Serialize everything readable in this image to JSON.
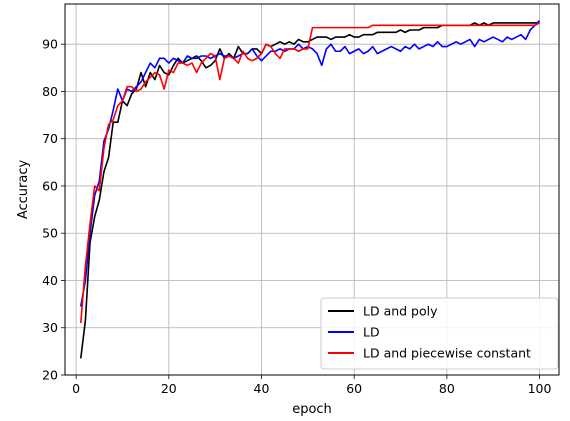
{
  "chart_data": {
    "type": "line",
    "title": "",
    "xlabel": "epoch",
    "ylabel": "Accuracy",
    "xlim": [
      -2.4,
      104.2
    ],
    "ylim": [
      20,
      98.5
    ],
    "xticks": [
      0,
      20,
      40,
      60,
      80,
      100
    ],
    "yticks": [
      20,
      30,
      40,
      50,
      60,
      70,
      80,
      90
    ],
    "grid": true,
    "legend_position": "lower-right",
    "series": [
      {
        "name": "LD and poly",
        "color": "#000000",
        "x": [
          1,
          2,
          3,
          4,
          5,
          6,
          7,
          8,
          9,
          10,
          11,
          12,
          13,
          14,
          15,
          16,
          17,
          18,
          19,
          20,
          21,
          22,
          23,
          24,
          25,
          26,
          27,
          28,
          29,
          30,
          31,
          32,
          33,
          34,
          35,
          36,
          37,
          38,
          39,
          40,
          41,
          42,
          43,
          44,
          45,
          46,
          47,
          48,
          49,
          50,
          51,
          52,
          53,
          54,
          55,
          56,
          57,
          58,
          59,
          60,
          61,
          62,
          63,
          64,
          65,
          66,
          67,
          68,
          69,
          70,
          71,
          72,
          73,
          74,
          75,
          76,
          77,
          78,
          79,
          80,
          81,
          82,
          83,
          84,
          85,
          86,
          87,
          88,
          89,
          90,
          91,
          92,
          93,
          94,
          95,
          96,
          97,
          98,
          99,
          100
        ],
        "values": [
          23.5,
          31.5,
          48,
          53.5,
          57,
          63,
          66,
          73.5,
          73.5,
          78,
          77,
          79.5,
          80.5,
          84,
          81,
          84,
          82.5,
          85.5,
          84,
          83.5,
          85.5,
          87,
          86,
          86.5,
          87,
          87.5,
          86.5,
          85,
          85.5,
          86.5,
          89,
          87,
          88,
          87,
          89.5,
          88,
          88,
          89,
          89,
          88,
          90,
          89.5,
          90,
          90.5,
          90,
          90.5,
          90,
          91,
          90.5,
          90.5,
          91,
          91.5,
          91.5,
          91.5,
          91,
          91.5,
          91.5,
          91.5,
          92,
          91.5,
          91.5,
          92,
          92,
          92,
          92.5,
          92.5,
          92.5,
          92.5,
          92.5,
          93,
          92.5,
          93,
          93,
          93,
          93.5,
          93.5,
          93.5,
          93.5,
          94,
          94,
          94,
          94,
          94,
          94,
          94,
          94.5,
          94,
          94.5,
          94,
          94.5,
          94.5,
          94.5,
          94.5,
          94.5,
          94.5,
          94.5,
          94.5,
          94.5,
          94.5,
          94.5
        ]
      },
      {
        "name": "LD",
        "color": "#0000ff",
        "x": [
          1,
          2,
          3,
          4,
          5,
          6,
          7,
          8,
          9,
          10,
          11,
          12,
          13,
          14,
          15,
          16,
          17,
          18,
          19,
          20,
          21,
          22,
          23,
          24,
          25,
          26,
          27,
          28,
          29,
          30,
          31,
          32,
          33,
          34,
          35,
          36,
          37,
          38,
          39,
          40,
          41,
          42,
          43,
          44,
          45,
          46,
          47,
          48,
          49,
          50,
          51,
          52,
          53,
          54,
          55,
          56,
          57,
          58,
          59,
          60,
          61,
          62,
          63,
          64,
          65,
          66,
          67,
          68,
          69,
          70,
          71,
          72,
          73,
          74,
          75,
          76,
          77,
          78,
          79,
          80,
          81,
          82,
          83,
          84,
          85,
          86,
          87,
          88,
          89,
          90,
          91,
          92,
          93,
          94,
          95,
          96,
          97,
          98,
          99,
          100
        ],
        "values": [
          34.5,
          40,
          50,
          58,
          61,
          69.5,
          72,
          76,
          80.5,
          78,
          80.5,
          80,
          81,
          82,
          84,
          86,
          85,
          87,
          87,
          86,
          87,
          86.5,
          86,
          87.5,
          87,
          87,
          87.5,
          87.5,
          87,
          87.5,
          88,
          87.5,
          87.5,
          87,
          87.5,
          88,
          88,
          89,
          87.5,
          86.5,
          87.5,
          88.5,
          88.5,
          89,
          88.5,
          89,
          89,
          90,
          89,
          89.5,
          89,
          88,
          85.5,
          89,
          90,
          88.5,
          88.5,
          89.5,
          88,
          88.5,
          89,
          88,
          88.5,
          89.5,
          88,
          88.5,
          89,
          89.5,
          89,
          88.5,
          89.5,
          89,
          90,
          89,
          89.5,
          90,
          89.5,
          90.5,
          89.5,
          89.5,
          90,
          90.5,
          90,
          90.5,
          91,
          89.5,
          91,
          90.5,
          91,
          91.5,
          91,
          90.5,
          91.5,
          91,
          91.5,
          92,
          91,
          93,
          94,
          95
        ]
      },
      {
        "name": "LD and piecewise constant",
        "color": "#ff0000",
        "x": [
          1,
          2,
          3,
          4,
          5,
          6,
          7,
          8,
          9,
          10,
          11,
          12,
          13,
          14,
          15,
          16,
          17,
          18,
          19,
          20,
          21,
          22,
          23,
          24,
          25,
          26,
          27,
          28,
          29,
          30,
          31,
          32,
          33,
          34,
          35,
          36,
          37,
          38,
          39,
          40,
          41,
          42,
          43,
          44,
          45,
          46,
          47,
          48,
          49,
          50,
          51,
          52,
          53,
          54,
          55,
          56,
          57,
          58,
          59,
          60,
          61,
          62,
          63,
          64,
          65,
          66,
          67,
          68,
          69,
          70,
          71,
          72,
          73,
          74,
          75,
          76,
          77,
          78,
          79,
          80,
          81,
          82,
          83,
          84,
          85,
          86,
          87,
          88,
          89,
          90,
          91,
          92,
          93,
          94,
          95,
          96,
          97,
          98,
          99,
          100
        ],
        "values": [
          31,
          43,
          52,
          60,
          59,
          68,
          73,
          74,
          77,
          78,
          81,
          81,
          80,
          80.5,
          82,
          83,
          84,
          83.5,
          80.5,
          84.5,
          84,
          86,
          86,
          85.5,
          86,
          84,
          86,
          87,
          88,
          87.5,
          82.5,
          87,
          87.5,
          87,
          86,
          88.5,
          87,
          86.5,
          87,
          88,
          90,
          89.5,
          88,
          87,
          89,
          89,
          89,
          88.5,
          89,
          89,
          93.5,
          93.5,
          93.5,
          93.5,
          93.5,
          93.5,
          93.5,
          93.5,
          93.5,
          93.5,
          93.5,
          93.5,
          93.5,
          94,
          94,
          94,
          94,
          94,
          94,
          94,
          94,
          94,
          94,
          94,
          94,
          94,
          94,
          94,
          94,
          94,
          94,
          94,
          94,
          94,
          94,
          94,
          94,
          94,
          94,
          94,
          94,
          94,
          94,
          94,
          94,
          94,
          94,
          94,
          94,
          94.5
        ]
      }
    ]
  }
}
